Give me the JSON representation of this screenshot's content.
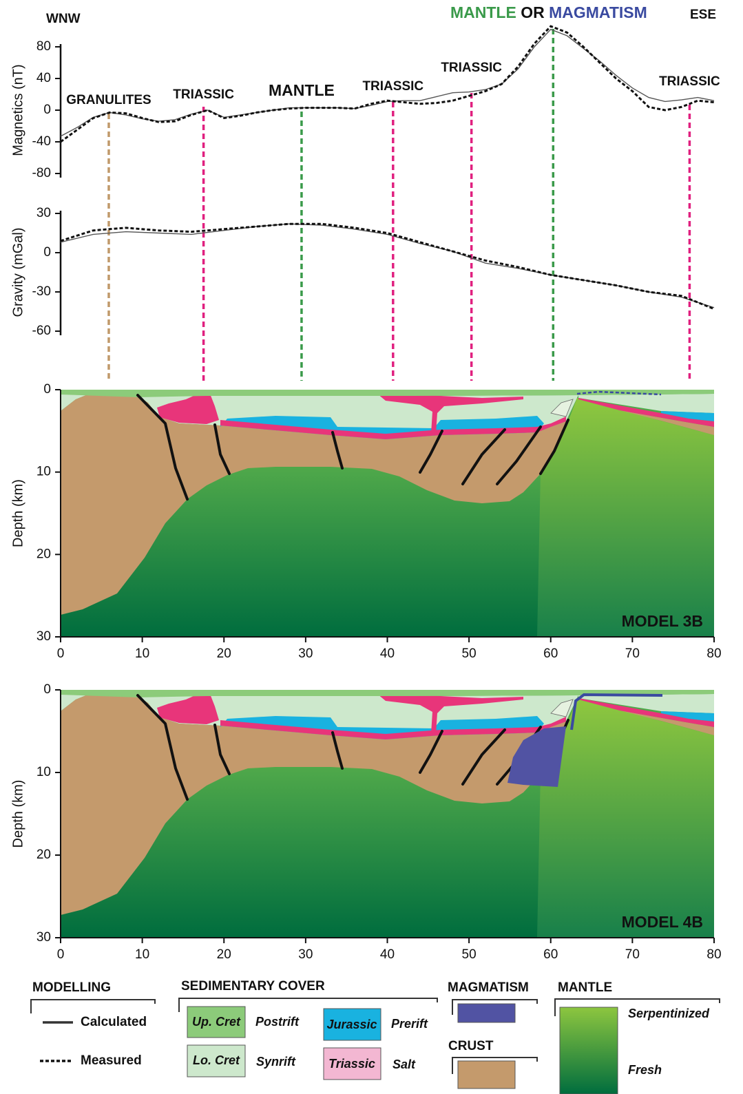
{
  "annotations": {
    "left_end": "WNW",
    "right_end": "ESE",
    "heading": [
      {
        "text": "MANTLE",
        "color": "#3a9a4a"
      },
      {
        "text": "OR",
        "color": "#111111"
      },
      {
        "text": "MAGMATISM",
        "color": "#3a4aa0"
      }
    ],
    "markers": [
      {
        "x": 5.9,
        "label": "GRANULITES",
        "color": "#c0996a"
      },
      {
        "x": 17.5,
        "label": "TRIASSIC",
        "color": "#e0207f"
      },
      {
        "x": 29.5,
        "label": "MANTLE",
        "color": "#3a9a4a"
      },
      {
        "x": 40.7,
        "label": "TRIASSIC",
        "color": "#e0207f"
      },
      {
        "x": 50.3,
        "label": "TRIASSIC",
        "color": "#e0207f"
      },
      {
        "x": 60.3,
        "color": "#3a9a4a"
      },
      {
        "x": 77,
        "label": "TRIASSIC",
        "color": "#e0207f"
      }
    ]
  },
  "chart_data": [
    {
      "type": "line",
      "y_label": "Magnetics (nT)",
      "xlim": [
        0,
        80
      ],
      "ylim": [
        -80,
        80
      ],
      "yticks": [
        80,
        40,
        0,
        -40,
        -80
      ],
      "x": [
        0,
        2,
        4,
        6,
        8,
        10,
        12,
        14,
        16,
        18,
        20,
        22,
        24,
        26,
        28,
        30,
        32,
        34,
        36,
        38,
        40,
        42,
        44,
        46,
        48,
        50,
        52,
        54,
        56,
        58,
        60,
        62,
        64,
        66,
        68,
        70,
        72,
        74,
        76,
        78,
        80
      ],
      "series": [
        {
          "name": "Calculated",
          "color": "#555555",
          "line_style": "solid",
          "values": [
            -33,
            -22,
            -9,
            -3,
            -6,
            -11,
            -14,
            -12,
            -5,
            0,
            -9,
            -6,
            -3,
            0,
            3,
            3,
            3,
            3,
            2,
            6,
            11,
            12,
            12,
            17,
            22,
            23,
            26,
            33,
            52,
            80,
            102,
            94,
            78,
            62,
            44,
            28,
            16,
            11,
            13,
            16,
            12
          ]
        },
        {
          "name": "Measured",
          "color": "#111111",
          "line_style": "dashed",
          "values": [
            -40,
            -25,
            -10,
            -3,
            -4,
            -10,
            -15,
            -14,
            -6,
            0,
            -10,
            -7,
            -3,
            0,
            2,
            3,
            3,
            3,
            2,
            8,
            12,
            10,
            8,
            9,
            12,
            18,
            24,
            33,
            55,
            84,
            106,
            98,
            80,
            60,
            40,
            24,
            4,
            0,
            4,
            12,
            10
          ]
        }
      ]
    },
    {
      "type": "line",
      "y_label": "Gravity (mGal)",
      "xlim": [
        0,
        80
      ],
      "ylim": [
        -60,
        30
      ],
      "yticks": [
        30,
        0,
        -30,
        -60
      ],
      "x": [
        0,
        4,
        8,
        12,
        16,
        20,
        24,
        28,
        32,
        36,
        40,
        44,
        48,
        52,
        56,
        60,
        64,
        68,
        72,
        76,
        80
      ],
      "series": [
        {
          "name": "Calculated",
          "color": "#555555",
          "line_style": "solid",
          "values": [
            8,
            14,
            16,
            15,
            14,
            17,
            20,
            22,
            21,
            18,
            14,
            7,
            1,
            -8,
            -12,
            -17,
            -21,
            -25,
            -30,
            -34,
            -42
          ]
        },
        {
          "name": "Measured",
          "color": "#111111",
          "line_style": "dashed",
          "values": [
            9,
            17,
            19,
            17,
            16,
            18,
            20,
            22,
            22,
            19,
            15,
            8,
            1,
            -6,
            -11,
            -17,
            -21,
            -25,
            -30,
            -33,
            -43
          ]
        }
      ]
    },
    {
      "type": "section",
      "title": "MODEL 3B",
      "y_label": "Depth (km)",
      "xlim": [
        0,
        80
      ],
      "ylim": [
        30,
        0
      ],
      "xticks": [
        0,
        10,
        20,
        30,
        40,
        50,
        60,
        70,
        80
      ],
      "yticks": [
        0,
        10,
        20,
        30
      ]
    },
    {
      "type": "section",
      "title": "MODEL 4B",
      "y_label": "Depth (km)",
      "xlim": [
        0,
        80
      ],
      "ylim": [
        30,
        0
      ],
      "xticks": [
        0,
        10,
        20,
        30,
        40,
        50,
        60,
        70,
        80
      ],
      "yticks": [
        0,
        10,
        20,
        30
      ]
    }
  ],
  "legend": {
    "modelling": "MODELLING",
    "sedimentary_cover": "SEDIMENTARY COVER",
    "units": [
      [
        "Up. Cret",
        "Postrift"
      ],
      [
        "Lo. Cret",
        "Synrift"
      ],
      [
        "Jurassic",
        "Prerift"
      ],
      [
        "Triassic",
        "Salt"
      ]
    ],
    "magmatism": "MAGMATISM",
    "crust": "CRUST",
    "mantle": "MANTLE",
    "serpentinized": "Serpentinized",
    "fresh": "Fresh"
  }
}
